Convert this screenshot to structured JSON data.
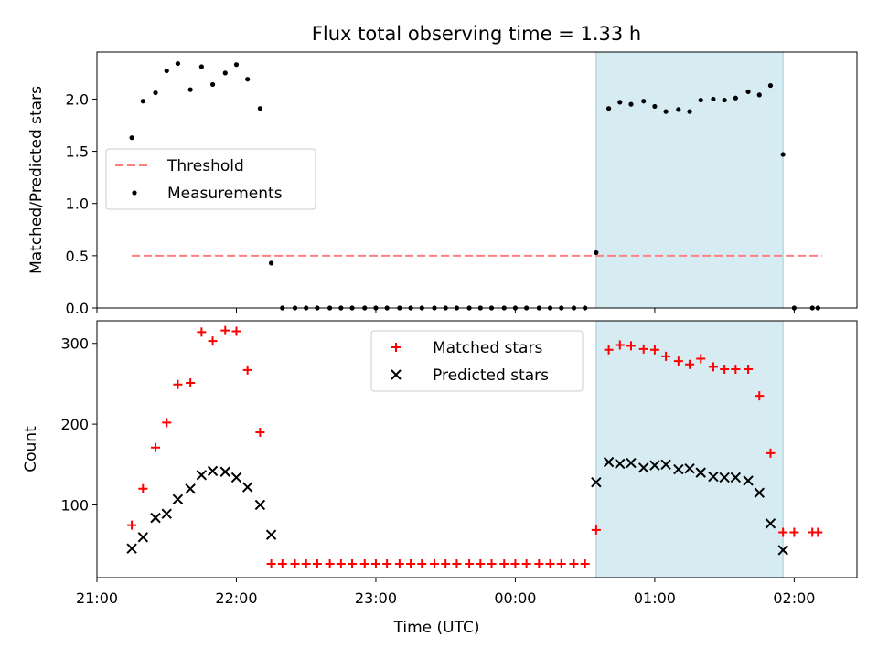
{
  "figure": {
    "title": "Flux total observing time = 1.33 h"
  },
  "chart_data": [
    {
      "type": "scatter",
      "panel": "top",
      "ylabel": "Matched/Predicted stars",
      "xlabel": "",
      "x_unit": "time (hours after 21:00 UTC)",
      "xlim": [
        0,
        5.45
      ],
      "ylim": [
        0,
        2.45
      ],
      "yticks": [
        0.0,
        0.5,
        1.0,
        1.5,
        2.0
      ],
      "ytick_labels": [
        "0.0",
        "0.5",
        "1.0",
        "1.5",
        "2.0"
      ],
      "highlight_span": [
        3.58,
        4.92
      ],
      "legend": {
        "position": "center-left",
        "entries": [
          "Threshold",
          "Measurements"
        ]
      },
      "series": [
        {
          "name": "Threshold",
          "style": "dashed-line",
          "color": "#ff7f7f",
          "x": [
            0.25,
            5.2
          ],
          "y": [
            0.5,
            0.5
          ]
        },
        {
          "name": "Measurements",
          "style": "dot",
          "color": "#000000",
          "x": [
            0.25,
            0.33,
            0.42,
            0.5,
            0.58,
            0.67,
            0.75,
            0.83,
            0.92,
            1.0,
            1.08,
            1.17,
            1.25,
            1.33,
            1.42,
            1.5,
            1.58,
            1.67,
            1.75,
            1.83,
            1.92,
            2.0,
            2.08,
            2.17,
            2.25,
            2.33,
            2.42,
            2.5,
            2.58,
            2.67,
            2.75,
            2.83,
            2.92,
            3.0,
            3.08,
            3.17,
            3.25,
            3.33,
            3.42,
            3.5,
            3.58,
            3.67,
            3.75,
            3.83,
            3.92,
            4.0,
            4.08,
            4.17,
            4.25,
            4.33,
            4.42,
            4.5,
            4.58,
            4.67,
            4.75,
            4.83,
            4.92,
            5.0,
            5.13,
            5.17
          ],
          "y": [
            1.63,
            1.98,
            2.06,
            2.27,
            2.34,
            2.09,
            2.31,
            2.14,
            2.25,
            2.33,
            2.19,
            1.91,
            0.43,
            0.0,
            0.0,
            0.0,
            0.0,
            0.0,
            0.0,
            0.0,
            0.0,
            0.0,
            0.0,
            0.0,
            0.0,
            0.0,
            0.0,
            0.0,
            0.0,
            0.0,
            0.0,
            0.0,
            0.0,
            0.0,
            0.0,
            0.0,
            0.0,
            0.0,
            0.0,
            0.0,
            0.53,
            1.91,
            1.97,
            1.95,
            1.98,
            1.93,
            1.88,
            1.9,
            1.88,
            1.99,
            2.0,
            1.99,
            2.01,
            2.07,
            2.04,
            2.13,
            1.47,
            0.0,
            0.0,
            0.0
          ]
        }
      ]
    },
    {
      "type": "scatter",
      "panel": "bottom",
      "ylabel": "Count",
      "xlabel": "Time (UTC)",
      "x_unit": "time (hours after 21:00 UTC)",
      "xlim": [
        0,
        5.45
      ],
      "ylim": [
        10,
        328
      ],
      "xticks": [
        0,
        1,
        2,
        3,
        4,
        5
      ],
      "xtick_labels": [
        "21:00",
        "22:00",
        "23:00",
        "00:00",
        "01:00",
        "02:00"
      ],
      "yticks": [
        100,
        200,
        300
      ],
      "ytick_labels": [
        "100",
        "200",
        "300"
      ],
      "highlight_span": [
        3.58,
        4.92
      ],
      "legend": {
        "position": "upper-center",
        "entries": [
          "Matched stars",
          "Predicted stars"
        ]
      },
      "series": [
        {
          "name": "Matched stars",
          "marker": "plus",
          "color": "#ff0000",
          "x": [
            0.25,
            0.33,
            0.42,
            0.5,
            0.58,
            0.67,
            0.75,
            0.83,
            0.92,
            1.0,
            1.08,
            1.17,
            1.25,
            1.33,
            1.42,
            1.5,
            1.58,
            1.67,
            1.75,
            1.83,
            1.92,
            2.0,
            2.08,
            2.17,
            2.25,
            2.33,
            2.42,
            2.5,
            2.58,
            2.67,
            2.75,
            2.83,
            2.92,
            3.0,
            3.08,
            3.17,
            3.25,
            3.33,
            3.42,
            3.5,
            3.58,
            3.67,
            3.75,
            3.83,
            3.92,
            4.0,
            4.08,
            4.17,
            4.25,
            4.33,
            4.42,
            4.5,
            4.58,
            4.67,
            4.75,
            4.83,
            4.92,
            5.0,
            5.13,
            5.17
          ],
          "y": [
            75,
            120,
            171,
            202,
            249,
            251,
            314,
            303,
            316,
            315,
            267,
            190,
            27,
            27,
            27,
            27,
            27,
            27,
            27,
            27,
            27,
            27,
            27,
            27,
            27,
            27,
            27,
            27,
            27,
            27,
            27,
            27,
            27,
            27,
            27,
            27,
            27,
            27,
            27,
            27,
            69,
            292,
            298,
            297,
            293,
            292,
            284,
            278,
            274,
            281,
            271,
            268,
            268,
            268,
            235,
            164,
            66,
            66,
            66,
            66
          ]
        },
        {
          "name": "Predicted stars",
          "marker": "x",
          "color": "#000000",
          "x": [
            0.25,
            0.33,
            0.42,
            0.5,
            0.58,
            0.67,
            0.75,
            0.83,
            0.92,
            1.0,
            1.08,
            1.17,
            1.25,
            3.58,
            3.67,
            3.75,
            3.83,
            3.92,
            4.0,
            4.08,
            4.17,
            4.25,
            4.33,
            4.42,
            4.5,
            4.58,
            4.67,
            4.75,
            4.83,
            4.92
          ],
          "y": [
            46,
            60,
            84,
            89,
            107,
            120,
            137,
            142,
            141,
            134,
            122,
            100,
            63,
            128,
            153,
            151,
            152,
            146,
            149,
            150,
            144,
            145,
            140,
            135,
            134,
            134,
            130,
            115,
            77,
            44
          ]
        }
      ]
    }
  ]
}
